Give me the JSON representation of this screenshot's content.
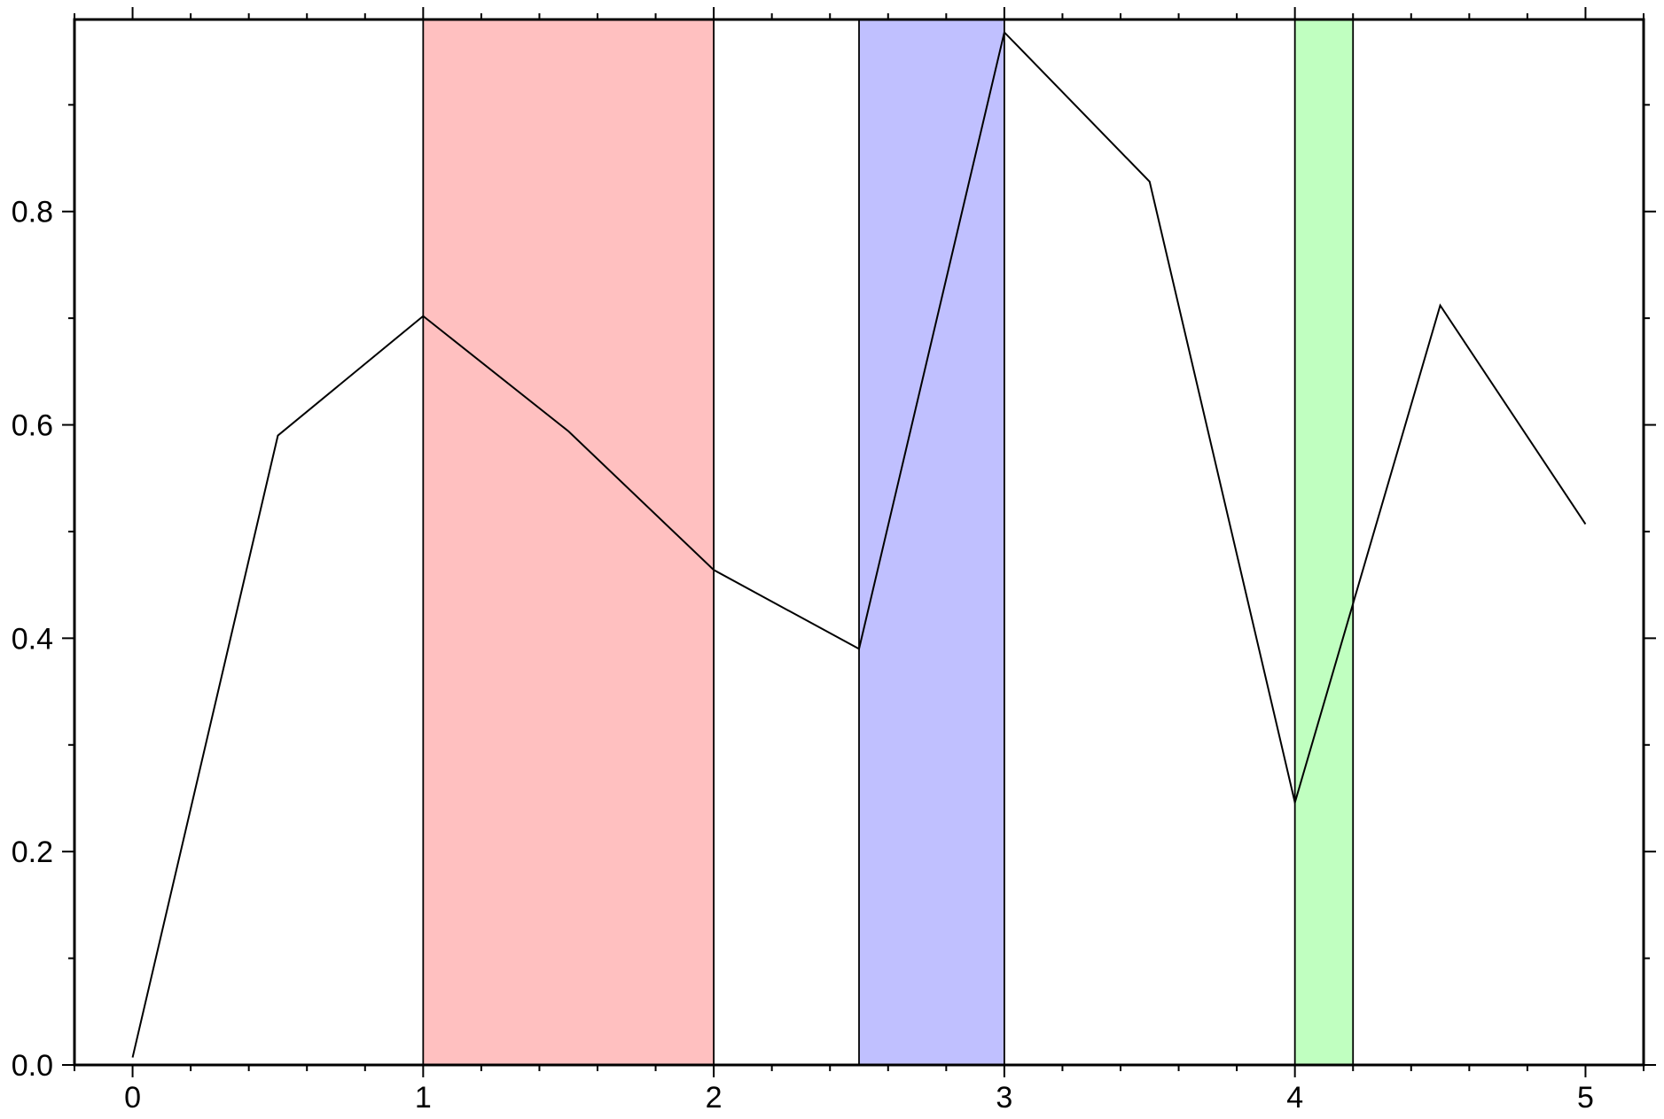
{
  "chart_data": {
    "type": "line",
    "x": [
      0,
      0.5,
      1,
      1.5,
      2,
      2.5,
      3,
      3.5,
      4,
      4.5,
      5
    ],
    "series": [
      {
        "color": "#000000",
        "values": [
          0.007,
          0.59,
          0.702,
          0.594,
          0.464,
          0.39,
          0.968,
          0.828,
          0.246,
          0.712,
          0.507
        ]
      }
    ],
    "spans": [
      {
        "xlim": [
          1,
          2
        ],
        "color": "#ffc0c0"
      },
      {
        "xlim": [
          2.5,
          3
        ],
        "color": "#c0c0ff"
      },
      {
        "xlim": [
          4,
          4.2
        ],
        "color": "#c0ffc0"
      }
    ],
    "xlim": [
      -0.2,
      5.2
    ],
    "ylim": [
      0,
      0.98
    ],
    "xticks": [
      0,
      1,
      2,
      3,
      4,
      5
    ],
    "yticks": [
      {
        "value": 0,
        "label": "0.0"
      },
      0.2,
      0.4,
      0.6,
      0.8
    ],
    "xminorticks": [
      -0.2,
      0.2,
      0.4,
      0.6,
      0.8,
      1.2,
      1.4,
      1.6,
      1.8,
      2.2,
      2.4,
      2.6,
      2.8,
      3.2,
      3.4,
      3.6,
      3.8,
      4.2,
      4.4,
      4.6,
      4.8,
      5.2
    ],
    "yminorticks": [
      0.1,
      0.3,
      0.5,
      0.7,
      0.9
    ],
    "grid": false
  }
}
